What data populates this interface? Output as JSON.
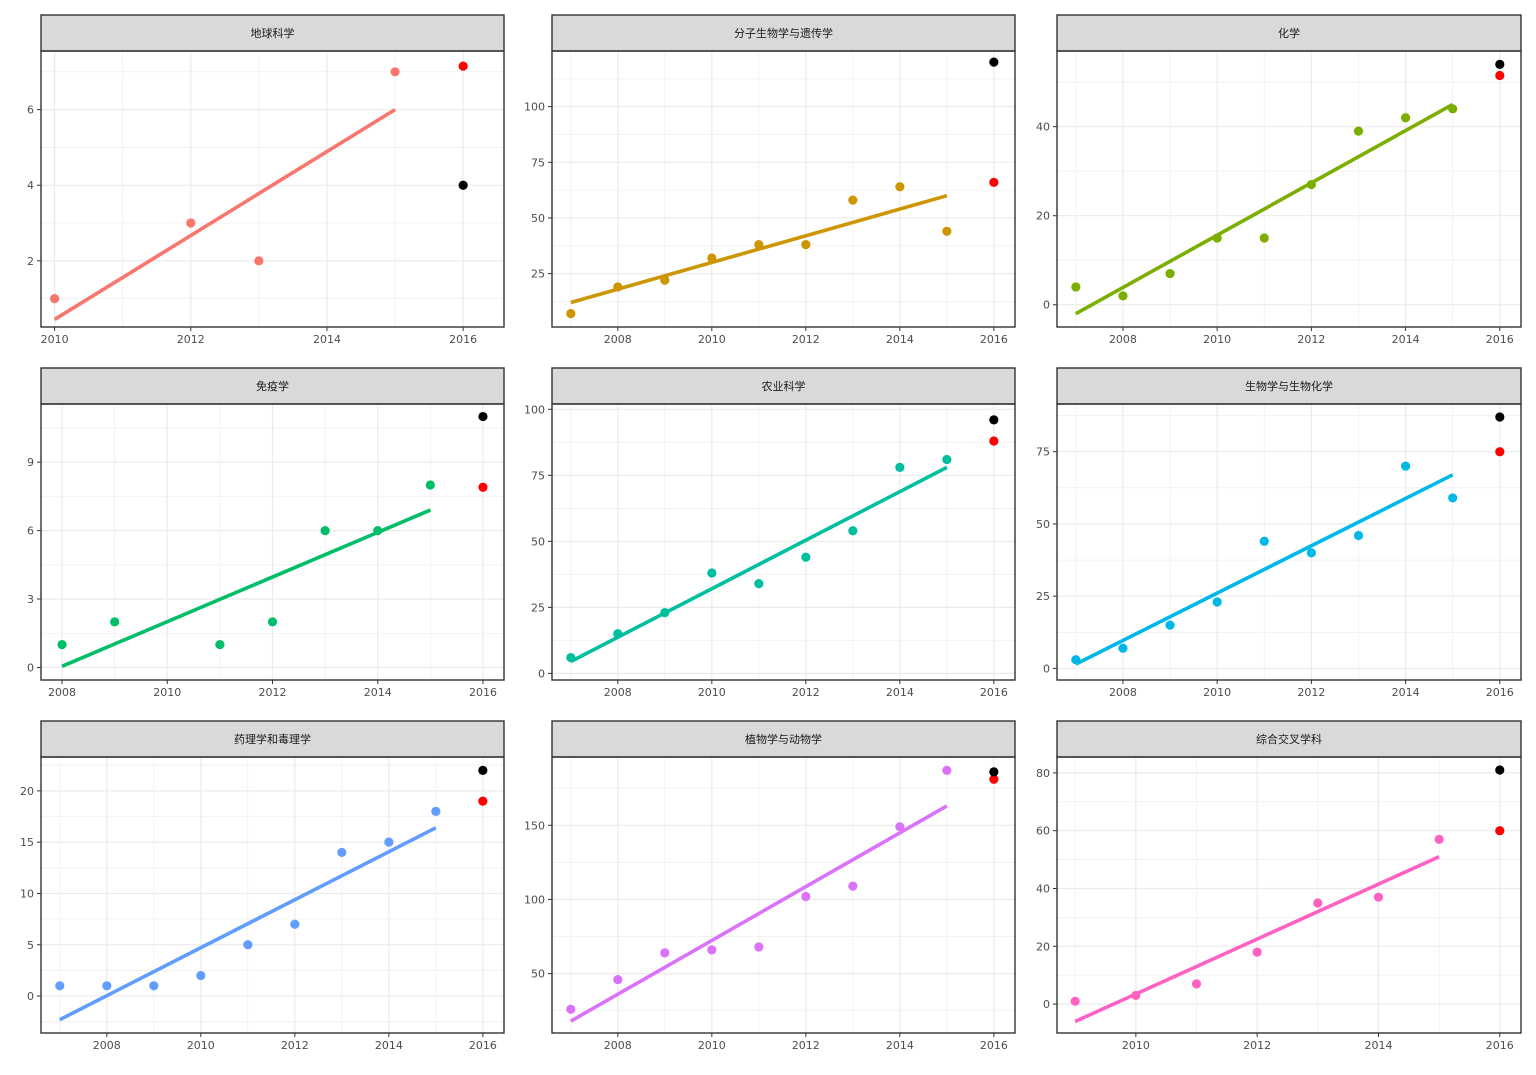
{
  "colors": {
    "actual_2016": "#ff0000",
    "predicted_2016": "#000000",
    "strip_fill": "#d9d9d9",
    "grid": "#ebebeb",
    "panel_border": "#333333"
  },
  "chart_data": [
    {
      "type": "scatter",
      "title": "地球科学",
      "color": "#f8766d",
      "x": [
        2010,
        2012,
        2013,
        2015
      ],
      "y": [
        1,
        3,
        2,
        7
      ],
      "fit_line": {
        "x": [
          2010,
          2015
        ],
        "y": [
          0.45,
          6.0
        ]
      },
      "points_2016": {
        "red": 7.15,
        "black": 4
      },
      "xlim": [
        2009.8,
        2016.6
      ],
      "ylim": [
        0.25,
        7.55
      ],
      "xticks": [
        2010,
        2012,
        2014,
        2016
      ],
      "yticks": [
        2,
        4,
        6
      ]
    },
    {
      "type": "scatter",
      "title": "分子生物学与遗传学",
      "color": "#cd9600",
      "x": [
        2007,
        2008,
        2009,
        2010,
        2011,
        2012,
        2013,
        2014,
        2015
      ],
      "y": [
        7,
        19,
        22,
        32,
        38,
        38,
        58,
        64,
        44
      ],
      "fit_line": {
        "x": [
          2007,
          2015
        ],
        "y": [
          12,
          60
        ]
      },
      "points_2016": {
        "red": 66,
        "black": 120
      },
      "xlim": [
        2006.6,
        2016.45
      ],
      "ylim": [
        1,
        125
      ],
      "xticks": [
        2008,
        2010,
        2012,
        2014,
        2016
      ],
      "yticks": [
        25,
        50,
        75,
        100
      ]
    },
    {
      "type": "scatter",
      "title": "化学",
      "color": "#7cae00",
      "x": [
        2007,
        2008,
        2009,
        2010,
        2011,
        2012,
        2013,
        2014,
        2015
      ],
      "y": [
        4,
        2,
        7,
        15,
        15,
        27,
        39,
        42,
        44
      ],
      "fit_line": {
        "x": [
          2007,
          2015
        ],
        "y": [
          -2,
          45
        ]
      },
      "points_2016": {
        "red": 51.5,
        "black": 54
      },
      "xlim": [
        2006.6,
        2016.45
      ],
      "ylim": [
        -5,
        57
      ],
      "xticks": [
        2008,
        2010,
        2012,
        2014,
        2016
      ],
      "yticks": [
        0,
        20,
        40
      ]
    },
    {
      "type": "scatter",
      "title": "免疫学",
      "color": "#00be67",
      "x": [
        2008,
        2009,
        2011,
        2012,
        2013,
        2014,
        2015
      ],
      "y": [
        1,
        2,
        1,
        2,
        6,
        6,
        8
      ],
      "fit_line": {
        "x": [
          2008,
          2015
        ],
        "y": [
          0.05,
          6.9
        ]
      },
      "points_2016": {
        "red": 7.9,
        "black": 11
      },
      "xlim": [
        2007.6,
        2016.4
      ],
      "ylim": [
        -0.55,
        11.55
      ],
      "xticks": [
        2008,
        2010,
        2012,
        2014,
        2016
      ],
      "yticks": [
        0,
        3,
        6,
        9
      ]
    },
    {
      "type": "scatter",
      "title": "农业科学",
      "color": "#00bfa0",
      "x": [
        2007,
        2008,
        2009,
        2010,
        2011,
        2012,
        2013,
        2014,
        2015
      ],
      "y": [
        6,
        15,
        23,
        38,
        34,
        44,
        54,
        78,
        81
      ],
      "fit_line": {
        "x": [
          2007,
          2015
        ],
        "y": [
          4.5,
          78
        ]
      },
      "points_2016": {
        "red": 88,
        "black": 96
      },
      "xlim": [
        2006.6,
        2016.45
      ],
      "ylim": [
        -2.5,
        102
      ],
      "xticks": [
        2008,
        2010,
        2012,
        2014,
        2016
      ],
      "yticks": [
        0,
        25,
        50,
        75,
        100
      ]
    },
    {
      "type": "scatter",
      "title": "生物学与生物化学",
      "color": "#00b8e7",
      "x": [
        2007,
        2008,
        2009,
        2010,
        2011,
        2012,
        2013,
        2014,
        2015
      ],
      "y": [
        3,
        7,
        15,
        23,
        44,
        40,
        46,
        70,
        59
      ],
      "fit_line": {
        "x": [
          2007,
          2015
        ],
        "y": [
          1.5,
          67
        ]
      },
      "points_2016": {
        "red": 75,
        "black": 87
      },
      "xlim": [
        2006.6,
        2016.45
      ],
      "ylim": [
        -4,
        91.5
      ],
      "xticks": [
        2008,
        2010,
        2012,
        2014,
        2016
      ],
      "yticks": [
        0,
        25,
        50,
        75
      ]
    },
    {
      "type": "scatter",
      "title": "药理学和毒理学",
      "color": "#619cff",
      "x": [
        2007,
        2008,
        2009,
        2010,
        2011,
        2012,
        2013,
        2014,
        2015
      ],
      "y": [
        1,
        1,
        1,
        2,
        5,
        7,
        14,
        15,
        18
      ],
      "fit_line": {
        "x": [
          2007,
          2015
        ],
        "y": [
          -2.3,
          16.4
        ]
      },
      "points_2016": {
        "red": 19,
        "black": 22
      },
      "xlim": [
        2006.6,
        2016.45
      ],
      "ylim": [
        -3.6,
        23.3
      ],
      "xticks": [
        2008,
        2010,
        2012,
        2014,
        2016
      ],
      "yticks": [
        0,
        5,
        10,
        15,
        20
      ]
    },
    {
      "type": "scatter",
      "title": "植物学与动物学",
      "color": "#db72fb",
      "x": [
        2007,
        2008,
        2009,
        2010,
        2011,
        2012,
        2013,
        2014,
        2015
      ],
      "y": [
        26,
        46,
        64,
        66,
        68,
        102,
        109,
        149,
        187
      ],
      "fit_line": {
        "x": [
          2007,
          2015
        ],
        "y": [
          18,
          163
        ]
      },
      "points_2016": {
        "red": 181,
        "black": 186
      },
      "xlim": [
        2006.6,
        2016.45
      ],
      "ylim": [
        10,
        196
      ],
      "xticks": [
        2008,
        2010,
        2012,
        2014,
        2016
      ],
      "yticks": [
        50,
        100,
        150
      ]
    },
    {
      "type": "scatter",
      "title": "综合交叉学科",
      "color": "#ff61c3",
      "x": [
        2009,
        2010,
        2011,
        2012,
        2013,
        2014,
        2015
      ],
      "y": [
        1,
        3,
        7,
        18,
        35,
        37,
        57
      ],
      "fit_line": {
        "x": [
          2009,
          2015
        ],
        "y": [
          -6,
          51
        ]
      },
      "points_2016": {
        "red": 60,
        "black": 81
      },
      "xlim": [
        2008.7,
        2016.35
      ],
      "ylim": [
        -10,
        85.5
      ],
      "xticks": [
        2010,
        2012,
        2014,
        2016
      ],
      "yticks": [
        0,
        20,
        40,
        60,
        80
      ]
    }
  ]
}
